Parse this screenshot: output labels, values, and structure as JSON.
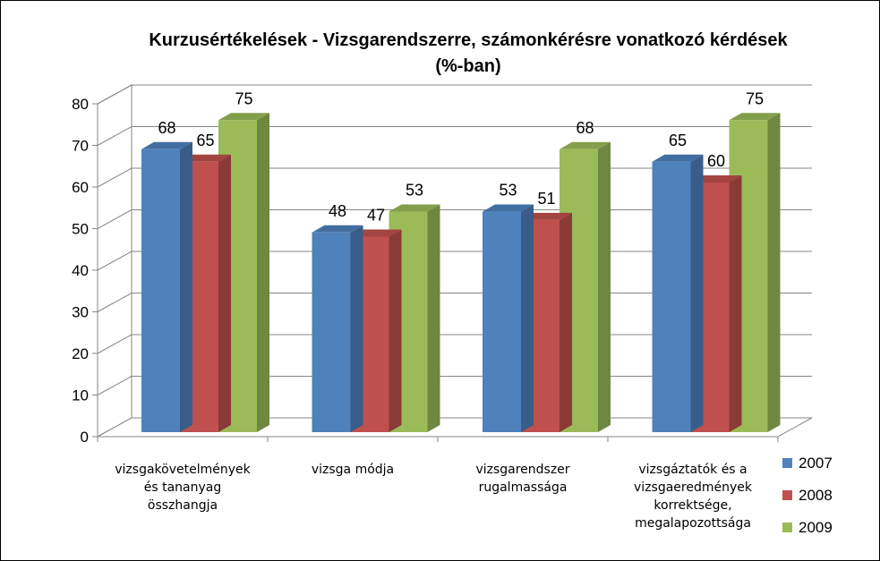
{
  "chart_data": {
    "type": "bar",
    "title": "Kurzusértékelések - Vizsgarendszerre, számonkérésre vonatkozó kérdések",
    "subtitle": "(%-ban)",
    "categories": [
      [
        "vizsgakövetelmények",
        "és tananyag",
        "összhangja"
      ],
      [
        "vizsga módja"
      ],
      [
        "vizsgarendszer",
        "rugalmassága"
      ],
      [
        "vizsgáztatók és a",
        "vizsgaeredmények",
        "korrektsége,",
        "megalapozottsága"
      ]
    ],
    "series": [
      {
        "name": "2007",
        "color": "#4F81BD",
        "values": [
          68,
          48,
          53,
          65
        ]
      },
      {
        "name": "2008",
        "color": "#C0504D",
        "values": [
          65,
          47,
          51,
          60
        ]
      },
      {
        "name": "2009",
        "color": "#9BBB59",
        "values": [
          75,
          53,
          68,
          75
        ]
      }
    ],
    "ylim": [
      0,
      80
    ],
    "yticks": [
      "0",
      "10",
      "20",
      "30",
      "40",
      "50",
      "60",
      "70",
      "80"
    ],
    "grid": true,
    "legend_position": "right",
    "three_d": true
  }
}
